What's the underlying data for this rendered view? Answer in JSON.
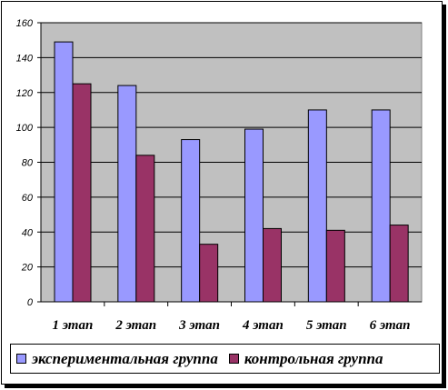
{
  "chart_data": {
    "type": "bar",
    "categories": [
      "1 этап",
      "2 этап",
      "3 этап",
      "4 этап",
      "5 этап",
      "6 этап"
    ],
    "series": [
      {
        "name": "экспериментальная группа",
        "values": [
          149,
          124,
          93,
          99,
          110,
          110
        ],
        "color": "#9999ff"
      },
      {
        "name": "контрольная группа",
        "values": [
          125,
          84,
          33,
          42,
          41,
          44
        ],
        "color": "#993366"
      }
    ],
    "ylim": [
      0,
      160
    ],
    "yticks": [
      0,
      20,
      40,
      60,
      80,
      100,
      120,
      140,
      160
    ],
    "grid": true,
    "plot_background": "#c0c0c0",
    "legend_position": "bottom"
  }
}
